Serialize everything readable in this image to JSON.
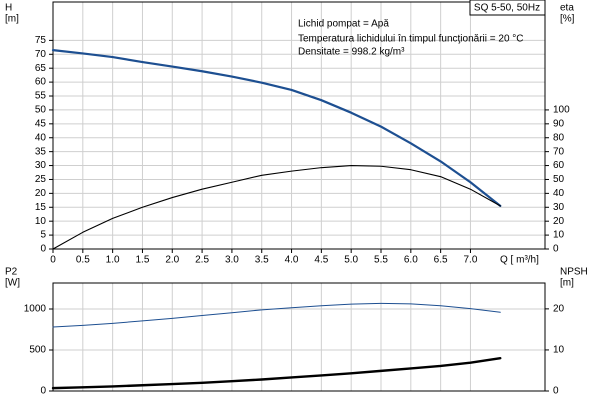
{
  "chart_data": [
    {
      "type": "line",
      "model": "SQ 5-50, 50Hz",
      "annotations": [
        "Lichid pompat = Apă",
        " Temperatura lichidului în timpul funcţionării = 20  °C",
        "Densitate = 998.2  kg/m³"
      ],
      "y_label": "H",
      "y_unit": "[m]",
      "y2_label": "eta",
      "y2_unit": "[%]",
      "x_label": "Q [ m³/h]",
      "x": [
        0,
        0.5,
        1,
        1.5,
        2,
        2.5,
        3,
        3.5,
        4,
        4.5,
        5,
        5.5,
        6,
        6.5,
        7,
        7.5
      ],
      "xlim": [
        0,
        8.25
      ],
      "xticks": [
        0,
        0.5,
        {
          "value": 1,
          "label": "1.0"
        },
        1.5,
        {
          "value": 2,
          "label": "2.0"
        },
        2.5,
        {
          "value": 3,
          "label": "3.0"
        },
        3.5,
        {
          "value": 4,
          "label": "4.0"
        },
        4.5,
        {
          "value": 5,
          "label": "5.0"
        },
        5.5,
        {
          "value": 6,
          "label": "6.0"
        },
        6.5,
        {
          "value": 7,
          "label": "7.0"
        }
      ],
      "ylim": [
        0,
        88.8
      ],
      "yticks": [
        0,
        5,
        10,
        15,
        20,
        25,
        30,
        35,
        40,
        45,
        50,
        55,
        60,
        65,
        70,
        75
      ],
      "y2lim": [
        0,
        177.6
      ],
      "y2ticks": [
        0,
        10,
        20,
        30,
        40,
        50,
        60,
        70,
        80,
        90,
        100
      ],
      "grid": true,
      "series": [
        {
          "color": "#1d4f91",
          "line_width": 2.2,
          "values": [
            71.5,
            70.3,
            69,
            67.2,
            65.6,
            63.9,
            62,
            59.8,
            57.2,
            53.5,
            49,
            44,
            38,
            31.5,
            24,
            15.5
          ]
        },
        {
          "color": "#000000",
          "line_width": 1.1,
          "axis": "y2",
          "values": [
            0,
            12,
            22,
            30,
            37,
            43,
            48,
            53,
            56,
            58.5,
            60,
            59.5,
            57,
            52,
            43,
            31
          ]
        }
      ]
    },
    {
      "type": "line",
      "y_label": "P2",
      "y_unit": "[W]",
      "y2_label": "NPSH",
      "y2_unit": "[m]",
      "x": [
        0,
        0.5,
        1,
        1.5,
        2,
        2.5,
        3,
        3.5,
        4,
        4.5,
        5,
        5.5,
        6,
        6.5,
        7,
        7.5
      ],
      "xlim": [
        0,
        8.25
      ],
      "ylim": [
        0,
        1317
      ],
      "yticks": [
        0,
        500,
        1000
      ],
      "y2lim": [
        0,
        26.3
      ],
      "y2ticks": [
        0,
        10,
        20
      ],
      "grid": true,
      "series": [
        {
          "color": "#1d4f91",
          "line_width": 1,
          "values": [
            780,
            800,
            825,
            855,
            885,
            920,
            955,
            990,
            1015,
            1040,
            1060,
            1068,
            1062,
            1040,
            1005,
            960
          ]
        },
        {
          "color": "#000000",
          "line_width": 2.4,
          "axis": "y2",
          "values": [
            0.7,
            0.9,
            1.1,
            1.4,
            1.7,
            2.0,
            2.4,
            2.8,
            3.3,
            3.8,
            4.3,
            4.9,
            5.5,
            6.1,
            6.9,
            8.0
          ]
        }
      ]
    }
  ]
}
